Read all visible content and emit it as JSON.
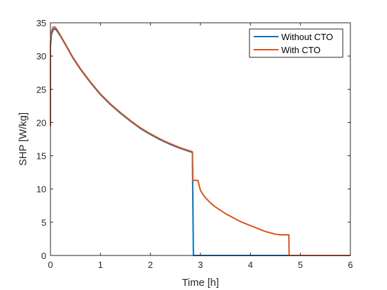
{
  "chart_data": {
    "type": "line",
    "xlabel": "Time [h]",
    "ylabel": "SHP [W/kg]",
    "xlim": [
      0,
      6
    ],
    "ylim": [
      0,
      35
    ],
    "xticks": [
      "0",
      "1",
      "2",
      "3",
      "4",
      "5",
      "6"
    ],
    "yticks": [
      "0",
      "5",
      "10",
      "15",
      "20",
      "25",
      "30",
      "35"
    ],
    "grid": false,
    "legend_position": "top-right",
    "series": [
      {
        "name": "Without CTO",
        "color": "#0072BD",
        "x": [
          0,
          0.0,
          0.02,
          0.05,
          0.08,
          0.12,
          0.2,
          0.3,
          0.45,
          0.6,
          0.8,
          1.0,
          1.2,
          1.4,
          1.6,
          1.8,
          2.0,
          2.2,
          2.4,
          2.6,
          2.8,
          2.84,
          2.845,
          2.86,
          2.9,
          3.5,
          4.0,
          4.5,
          5.0,
          5.5,
          6.0
        ],
        "y": [
          19.5,
          31.5,
          33.2,
          33.9,
          34.1,
          33.9,
          33.0,
          31.7,
          29.7,
          28.0,
          26.0,
          24.2,
          22.7,
          21.4,
          20.2,
          19.1,
          18.2,
          17.4,
          16.7,
          16.1,
          15.6,
          15.5,
          11.2,
          0,
          0,
          0,
          0,
          0,
          0,
          0,
          0
        ]
      },
      {
        "name": "With CTO",
        "color": "#D95319",
        "x": [
          0,
          0.0,
          0.02,
          0.05,
          0.08,
          0.12,
          0.2,
          0.3,
          0.45,
          0.6,
          0.8,
          1.0,
          1.2,
          1.4,
          1.6,
          1.8,
          2.0,
          2.2,
          2.4,
          2.6,
          2.8,
          2.84,
          2.85,
          2.9,
          2.95,
          3.0,
          3.05,
          3.1,
          3.15,
          3.2,
          3.3,
          3.4,
          3.5,
          3.6,
          3.7,
          3.8,
          3.9,
          4.0,
          4.1,
          4.2,
          4.3,
          4.4,
          4.5,
          4.6,
          4.7,
          4.77,
          4.775,
          5.0,
          5.5,
          6.0
        ],
        "y": [
          19.5,
          32.0,
          33.6,
          34.3,
          34.4,
          34.1,
          33.1,
          31.8,
          29.8,
          28.1,
          26.1,
          24.3,
          22.8,
          21.5,
          20.3,
          19.2,
          18.3,
          17.5,
          16.8,
          16.2,
          15.7,
          15.6,
          11.3,
          11.3,
          11.3,
          9.8,
          9.2,
          8.7,
          8.3,
          7.9,
          7.3,
          6.8,
          6.3,
          5.9,
          5.5,
          5.1,
          4.8,
          4.5,
          4.2,
          3.9,
          3.6,
          3.4,
          3.2,
          3.1,
          3.1,
          3.1,
          0,
          0,
          0,
          0
        ]
      }
    ]
  }
}
